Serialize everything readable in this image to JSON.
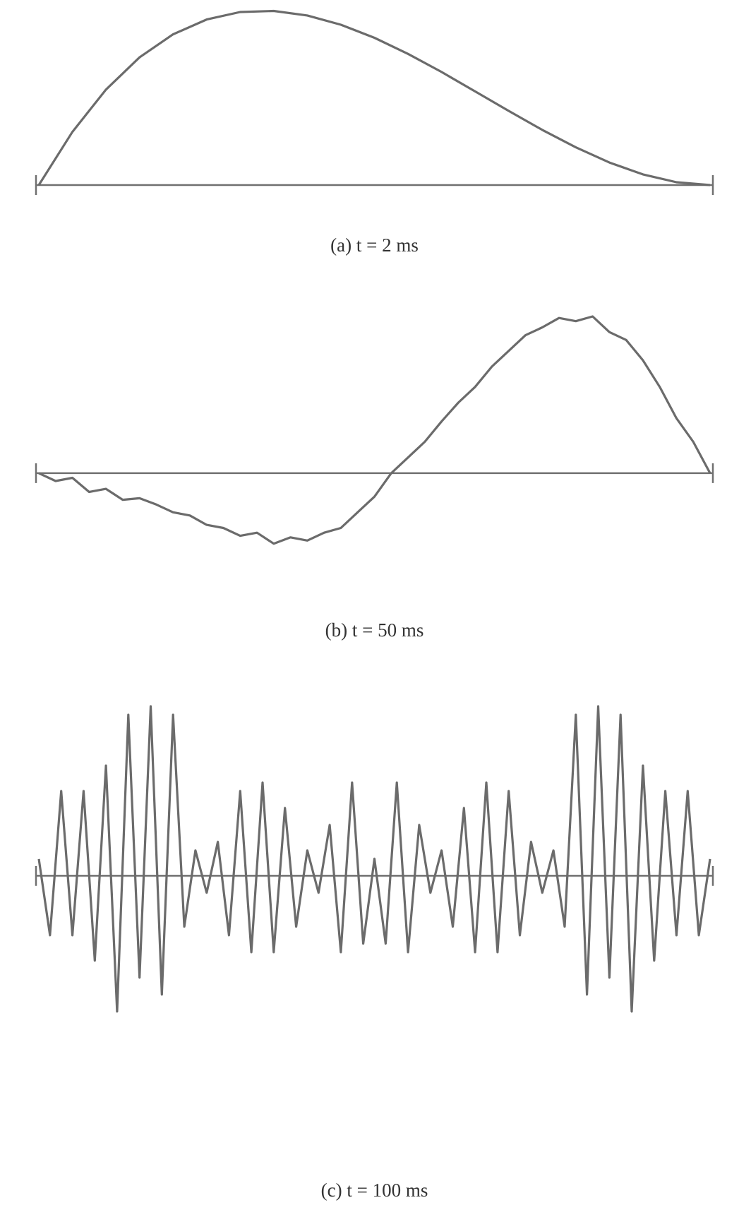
{
  "chart_data": [
    {
      "type": "line",
      "title": "(a) t = 2 ms",
      "color": "#6b6b6b",
      "ylim": [
        0,
        1
      ],
      "values": [
        0,
        0.305,
        0.547,
        0.732,
        0.864,
        0.949,
        0.992,
        0.998,
        0.972,
        0.919,
        0.844,
        0.752,
        0.648,
        0.537,
        0.425,
        0.316,
        0.216,
        0.129,
        0.061,
        0.016,
        0
      ]
    },
    {
      "type": "line",
      "title": "(b) t = 50 ms",
      "color": "#6b6b6b",
      "ylim": [
        -0.6,
        1
      ],
      "values": [
        0,
        -0.05,
        -0.03,
        -0.12,
        -0.1,
        -0.17,
        -0.16,
        -0.2,
        -0.25,
        -0.27,
        -0.33,
        -0.35,
        -0.4,
        -0.38,
        -0.45,
        -0.41,
        -0.43,
        -0.38,
        -0.35,
        -0.25,
        -0.15,
        0,
        0.1,
        0.2,
        0.33,
        0.45,
        0.55,
        0.68,
        0.78,
        0.88,
        0.93,
        0.99,
        0.97,
        1,
        0.9,
        0.85,
        0.72,
        0.55,
        0.35,
        0.2,
        0
      ]
    },
    {
      "type": "line",
      "title": "(c) t = 100 ms",
      "color": "#6b6b6b",
      "ylim": [
        -1,
        1
      ],
      "values": [
        0.1,
        -0.35,
        0.5,
        -0.35,
        0.5,
        -0.5,
        0.65,
        -0.8,
        0.95,
        -0.6,
        1,
        -0.7,
        0.95,
        -0.3,
        0.15,
        -0.1,
        0.2,
        -0.35,
        0.5,
        -0.45,
        0.55,
        -0.45,
        0.4,
        -0.3,
        0.15,
        -0.1,
        0.3,
        -0.45,
        0.55,
        -0.4,
        0.1,
        -0.4,
        0.55,
        -0.45,
        0.3,
        -0.1,
        0.15,
        -0.3,
        0.4,
        -0.45,
        0.55,
        -0.45,
        0.5,
        -0.35,
        0.2,
        -0.1,
        0.15,
        -0.3,
        0.95,
        -0.7,
        1,
        -0.6,
        0.95,
        -0.8,
        0.65,
        -0.5,
        0.5,
        -0.35,
        0.5,
        -0.35,
        0.1
      ]
    }
  ]
}
